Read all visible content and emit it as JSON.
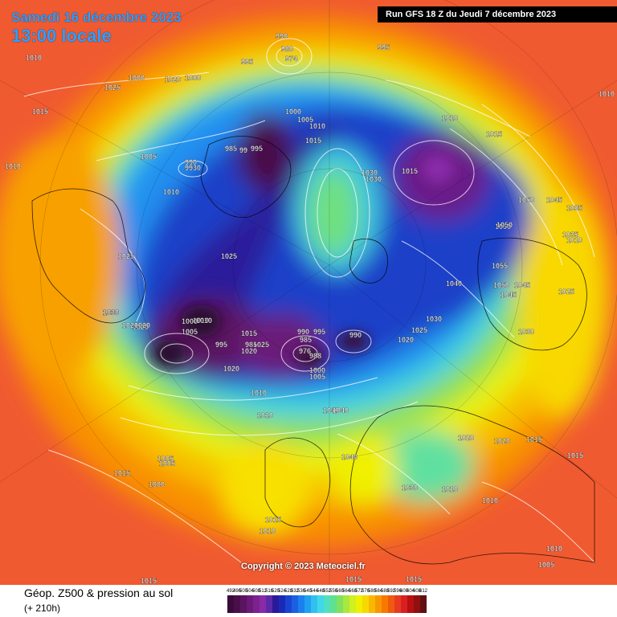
{
  "header": {
    "date": "Samedi 16 décembre 2023",
    "time": "13:00 locale",
    "run": "Run GFS 18 Z du Jeudi 7 décembre 2023"
  },
  "copyright": "Copyright © 2023 Meteociel.fr",
  "footer": {
    "caption": "Géop. Z500 & pression au sol",
    "caption_sub": "(+ 210h)"
  },
  "legend": [
    {
      "v": "492",
      "c": "#3a0a3a"
    },
    {
      "v": "496",
      "c": "#4a0f4a"
    },
    {
      "v": "500",
      "c": "#5a1460"
    },
    {
      "v": "504",
      "c": "#6b1a78"
    },
    {
      "v": "508",
      "c": "#7a228e"
    },
    {
      "v": "512",
      "c": "#8a2aa8"
    },
    {
      "v": "516",
      "c": "#5a2aa8"
    },
    {
      "v": "520",
      "c": "#2a1a9a"
    },
    {
      "v": "524",
      "c": "#1a2ab8"
    },
    {
      "v": "528",
      "c": "#1a44d0"
    },
    {
      "v": "532",
      "c": "#1a60e0"
    },
    {
      "v": "536",
      "c": "#1a80ee"
    },
    {
      "v": "540",
      "c": "#20a0f0"
    },
    {
      "v": "544",
      "c": "#30c0f0"
    },
    {
      "v": "548",
      "c": "#40d8e8"
    },
    {
      "v": "552",
      "c": "#50e0c0"
    },
    {
      "v": "556",
      "c": "#60e090"
    },
    {
      "v": "560",
      "c": "#80e060"
    },
    {
      "v": "564",
      "c": "#a8e840"
    },
    {
      "v": "568",
      "c": "#d0f020"
    },
    {
      "v": "572",
      "c": "#f0f000"
    },
    {
      "v": "576",
      "c": "#f8d800"
    },
    {
      "v": "580",
      "c": "#f8b800"
    },
    {
      "v": "584",
      "c": "#f89800"
    },
    {
      "v": "588",
      "c": "#f87800"
    },
    {
      "v": "592",
      "c": "#f05a10"
    },
    {
      "v": "596",
      "c": "#e83a20"
    },
    {
      "v": "600",
      "c": "#d82020"
    },
    {
      "v": "604",
      "c": "#b81010"
    },
    {
      "v": "608",
      "c": "#901010"
    },
    {
      "v": "612",
      "c": "#601010"
    }
  ],
  "pressure_labels": [
    "990",
    "980",
    "974",
    "995",
    "1000",
    "1000",
    "995",
    "1010",
    "1025",
    "1020",
    "1015",
    "1010",
    "1010",
    "1005",
    "990",
    "9930",
    "985",
    "99",
    "995",
    "1000",
    "1005",
    "1010",
    "1015",
    "1010",
    "1030",
    "1015",
    "1030",
    "1050",
    "1045",
    "1035",
    "1025",
    "1035",
    "1050",
    "1010",
    "1025",
    "1030",
    "1010",
    "1020",
    "1025",
    "1000",
    "1005",
    "1010",
    "1020",
    "995",
    "985",
    "1015",
    "1025",
    "1020",
    "1020",
    "990",
    "995",
    "985",
    "976",
    "988",
    "990",
    "1020",
    "1000",
    "1005",
    "1030",
    "1025",
    "1020",
    "1040",
    "1050",
    "1055",
    "1050",
    "1045",
    "1045",
    "1030",
    "1040",
    "1015",
    "1020",
    "1020",
    "1015",
    "1015",
    "1010",
    "1005",
    "1005",
    "1015",
    "1000",
    "1040",
    "1030",
    "1010",
    "1010",
    "1015",
    "1010",
    "1010",
    "1005",
    "1015",
    "1015",
    "1015",
    "1010",
    "1010",
    "1030",
    "1040"
  ]
}
